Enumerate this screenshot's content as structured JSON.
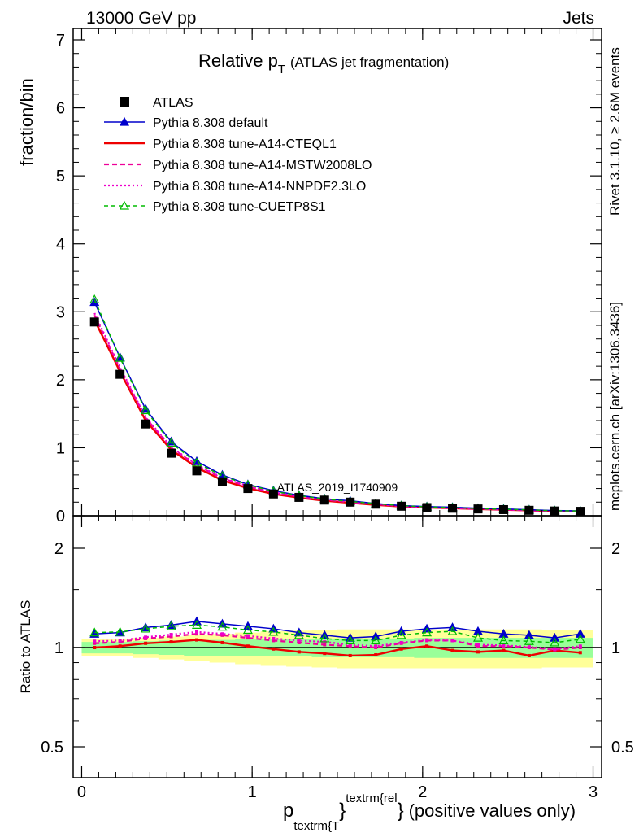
{
  "header": {
    "energy_label": "13000 GeV pp",
    "process_label": "Jets"
  },
  "side_labels": {
    "rivet": "Rivet 3.1.10, ≥ 2.6M events",
    "mcplots": "mcplots.cern.ch [arXiv:1306.3436]"
  },
  "main_plot": {
    "title": "Relative p",
    "title_subscript": "T",
    "title_note": "(ATLAS jet fragmentation)",
    "ylabel": "fraction/bin",
    "analysis_label": "ATLAS_2019_I1740909",
    "ylim": [
      0,
      7.2
    ],
    "yticks": [
      "0",
      "1",
      "2",
      "3",
      "4",
      "5",
      "6",
      "7"
    ]
  },
  "ratio_plot": {
    "ylabel": "Ratio to ATLAS",
    "yticks_left": [
      "0.5",
      "1",
      "2"
    ],
    "yticks_right": [
      "0.5",
      "1",
      "2"
    ]
  },
  "xaxis": {
    "label_main": "p",
    "label_sub": "textrm{T",
    "label_sup": "textrm{rel",
    "label_brace_close": "}",
    "label_brace_close2": "}",
    "label_note": "(positive values only)",
    "ticks": [
      "0",
      "1",
      "2",
      "3"
    ],
    "xlim": [
      -0.05,
      3.05
    ]
  },
  "colors": {
    "atlas": "#000000",
    "default": "#0000cc",
    "cteql1": "#ee0000",
    "mstw": "#ee0099",
    "nnpdf": "#ee00cc",
    "cuetp8s1": "#00bb00",
    "band_green": "#99ff99",
    "band_yellow": "#ffff99"
  },
  "chart_data": [
    {
      "type": "line",
      "panel": "main",
      "x": [
        0.075,
        0.225,
        0.375,
        0.525,
        0.675,
        0.825,
        0.975,
        1.125,
        1.275,
        1.425,
        1.575,
        1.725,
        1.875,
        2.025,
        2.175,
        2.325,
        2.475,
        2.625,
        2.775,
        2.925
      ],
      "series": [
        {
          "name": "ATLAS",
          "style": "markers",
          "values": [
            2.85,
            2.08,
            1.35,
            0.92,
            0.66,
            0.5,
            0.4,
            0.32,
            0.27,
            0.23,
            0.2,
            0.17,
            0.14,
            0.12,
            0.11,
            0.1,
            0.09,
            0.08,
            0.07,
            0.065
          ]
        },
        {
          "name": "Pythia 8.308 default",
          "style": "line-triangle",
          "values": [
            3.14,
            2.33,
            1.57,
            1.09,
            0.8,
            0.6,
            0.46,
            0.37,
            0.3,
            0.25,
            0.22,
            0.18,
            0.15,
            0.135,
            0.125,
            0.11,
            0.1,
            0.088,
            0.076,
            0.072
          ]
        },
        {
          "name": "Pythia 8.308 tune-A14-CTEQL1",
          "style": "solid",
          "values": [
            2.88,
            2.12,
            1.4,
            0.97,
            0.71,
            0.52,
            0.405,
            0.32,
            0.265,
            0.22,
            0.19,
            0.16,
            0.135,
            0.12,
            0.11,
            0.098,
            0.088,
            0.078,
            0.067,
            0.063
          ]
        },
        {
          "name": "Pythia 8.308 tune-A14-MSTW2008LO",
          "style": "dashed",
          "values": [
            2.95,
            2.16,
            1.44,
            1.0,
            0.74,
            0.55,
            0.43,
            0.34,
            0.28,
            0.235,
            0.2,
            0.17,
            0.14,
            0.125,
            0.113,
            0.1,
            0.09,
            0.08,
            0.069,
            0.066
          ]
        },
        {
          "name": "Pythia 8.308 tune-A14-NNPDF2.3LO",
          "style": "dotted",
          "values": [
            2.98,
            2.18,
            1.45,
            1.01,
            0.75,
            0.56,
            0.435,
            0.345,
            0.285,
            0.24,
            0.205,
            0.172,
            0.142,
            0.126,
            0.114,
            0.101,
            0.091,
            0.081,
            0.07,
            0.067
          ]
        },
        {
          "name": "Pythia 8.308 tune-CUETP8S1",
          "style": "dashed-open-triangle",
          "values": [
            3.18,
            2.32,
            1.55,
            1.07,
            0.78,
            0.585,
            0.455,
            0.36,
            0.295,
            0.245,
            0.21,
            0.178,
            0.148,
            0.13,
            0.12,
            0.105,
            0.095,
            0.085,
            0.073,
            0.07
          ]
        }
      ]
    },
    {
      "type": "line",
      "panel": "ratio",
      "x": [
        0.075,
        0.225,
        0.375,
        0.525,
        0.675,
        0.825,
        0.975,
        1.125,
        1.275,
        1.425,
        1.575,
        1.725,
        1.875,
        2.025,
        2.175,
        2.325,
        2.475,
        2.625,
        2.775,
        2.925
      ],
      "ylim": [
        0.4,
        2.4
      ],
      "log_scale": true,
      "band_green": {
        "lo": [
          0.96,
          0.96,
          0.955,
          0.95,
          0.945,
          0.945,
          0.94,
          0.94,
          0.94,
          0.935,
          0.935,
          0.935,
          0.935,
          0.93,
          0.93,
          0.93,
          0.93,
          0.93,
          0.93,
          0.93
        ],
        "hi": [
          1.04,
          1.04,
          1.045,
          1.05,
          1.055,
          1.055,
          1.06,
          1.06,
          1.06,
          1.065,
          1.065,
          1.065,
          1.065,
          1.07,
          1.07,
          1.07,
          1.07,
          1.07,
          1.07,
          1.07
        ]
      },
      "band_yellow": {
        "lo": [
          0.94,
          0.94,
          0.93,
          0.92,
          0.91,
          0.9,
          0.89,
          0.88,
          0.875,
          0.87,
          0.865,
          0.865,
          0.865,
          0.865,
          0.865,
          0.865,
          0.865,
          0.865,
          0.87,
          0.87
        ],
        "hi": [
          1.06,
          1.06,
          1.07,
          1.08,
          1.09,
          1.1,
          1.11,
          1.12,
          1.125,
          1.13,
          1.135,
          1.135,
          1.135,
          1.135,
          1.135,
          1.135,
          1.135,
          1.135,
          1.13,
          1.13
        ]
      },
      "series": [
        {
          "name": "Pythia 8.308 default",
          "values": [
            1.1,
            1.11,
            1.15,
            1.17,
            1.2,
            1.18,
            1.16,
            1.14,
            1.11,
            1.09,
            1.07,
            1.08,
            1.12,
            1.14,
            1.15,
            1.12,
            1.1,
            1.09,
            1.07,
            1.1
          ]
        },
        {
          "name": "Pythia 8.308 tune-A14-CTEQL1",
          "values": [
            1.0,
            1.01,
            1.03,
            1.04,
            1.055,
            1.035,
            1.01,
            0.99,
            0.97,
            0.96,
            0.945,
            0.95,
            0.99,
            1.01,
            0.98,
            0.97,
            0.98,
            0.945,
            0.98,
            0.965
          ]
        },
        {
          "name": "Pythia 8.308 tune-A14-MSTW2008LO",
          "values": [
            1.03,
            1.04,
            1.065,
            1.08,
            1.1,
            1.09,
            1.07,
            1.05,
            1.035,
            1.02,
            1.01,
            1.0,
            1.03,
            1.05,
            1.05,
            1.01,
            1.01,
            1.0,
            0.985,
            1.0
          ]
        },
        {
          "name": "Pythia 8.308 tune-A14-NNPDF2.3LO",
          "values": [
            1.045,
            1.05,
            1.075,
            1.095,
            1.115,
            1.1,
            1.085,
            1.065,
            1.05,
            1.04,
            1.02,
            1.01,
            1.035,
            1.055,
            1.05,
            1.02,
            1.015,
            1.005,
            0.99,
            1.01
          ]
        },
        {
          "name": "Pythia 8.308 tune-CUETP8S1",
          "values": [
            1.11,
            1.115,
            1.14,
            1.16,
            1.17,
            1.155,
            1.13,
            1.115,
            1.09,
            1.065,
            1.05,
            1.05,
            1.09,
            1.11,
            1.12,
            1.07,
            1.05,
            1.045,
            1.035,
            1.06
          ]
        }
      ]
    }
  ]
}
